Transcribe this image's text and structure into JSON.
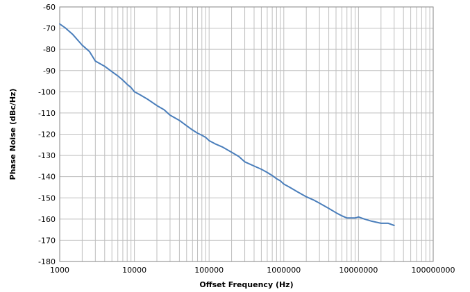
{
  "chart_data": {
    "type": "line",
    "title": "",
    "xlabel": "Offset Frequency (Hz)",
    "ylabel": "Phase Noise (dBc/Hz)",
    "x_scale": "log",
    "xlim": [
      1000,
      100000000
    ],
    "ylim": [
      -180,
      -60
    ],
    "grid": true,
    "legend": "none",
    "x_ticks": [
      1000,
      10000,
      100000,
      1000000,
      10000000,
      100000000
    ],
    "x_tick_labels": [
      "1000",
      "10000",
      "100000",
      "1000000",
      "10000000",
      "100000000"
    ],
    "y_ticks": [
      -180,
      -170,
      -160,
      -150,
      -140,
      -130,
      -120,
      -110,
      -100,
      -90,
      -80,
      -70,
      -60
    ],
    "y_tick_labels": [
      "-180",
      "-170",
      "-160",
      "-150",
      "-140",
      "-130",
      "-120",
      "-110",
      "-100",
      "-90",
      "-80",
      "-70",
      "-60"
    ],
    "colors": {
      "series": "#4a7ebb",
      "grid": "#bfbfbf",
      "axis": "#868686"
    },
    "series": [
      {
        "x": [
          1000,
          1200,
          1500,
          2000,
          2500,
          3000,
          4000,
          5000,
          6000,
          7000,
          8000,
          9000,
          10000,
          12000,
          15000,
          20000,
          25000,
          30000,
          40000,
          50000,
          60000,
          70000,
          80000,
          90000,
          100000,
          120000,
          150000,
          200000,
          250000,
          300000,
          400000,
          500000,
          600000,
          700000,
          800000,
          900000,
          1000000,
          1200000,
          1500000,
          2000000,
          2500000,
          3000000,
          4000000,
          5000000,
          6000000,
          7000000,
          8000000,
          9000000,
          10000000,
          12000000,
          15000000,
          20000000,
          25000000,
          30000000
        ],
        "values": [
          -68,
          -70,
          -73,
          -78,
          -81,
          -85.5,
          -88,
          -90.5,
          -92.5,
          -94.5,
          -96.5,
          -98,
          -100,
          -101.5,
          -103.5,
          -106.5,
          -108.5,
          -111,
          -113.5,
          -116,
          -118,
          -119.5,
          -120.5,
          -121.5,
          -123,
          -124.5,
          -126,
          -128.5,
          -130.5,
          -133,
          -135,
          -136.5,
          -138,
          -139.5,
          -141,
          -142,
          -143.5,
          -145,
          -147,
          -149.5,
          -151,
          -152.5,
          -155,
          -157,
          -158.5,
          -159.5,
          -159.5,
          -159.5,
          -159,
          -160,
          -161,
          -162,
          -162,
          -163
        ]
      }
    ]
  }
}
